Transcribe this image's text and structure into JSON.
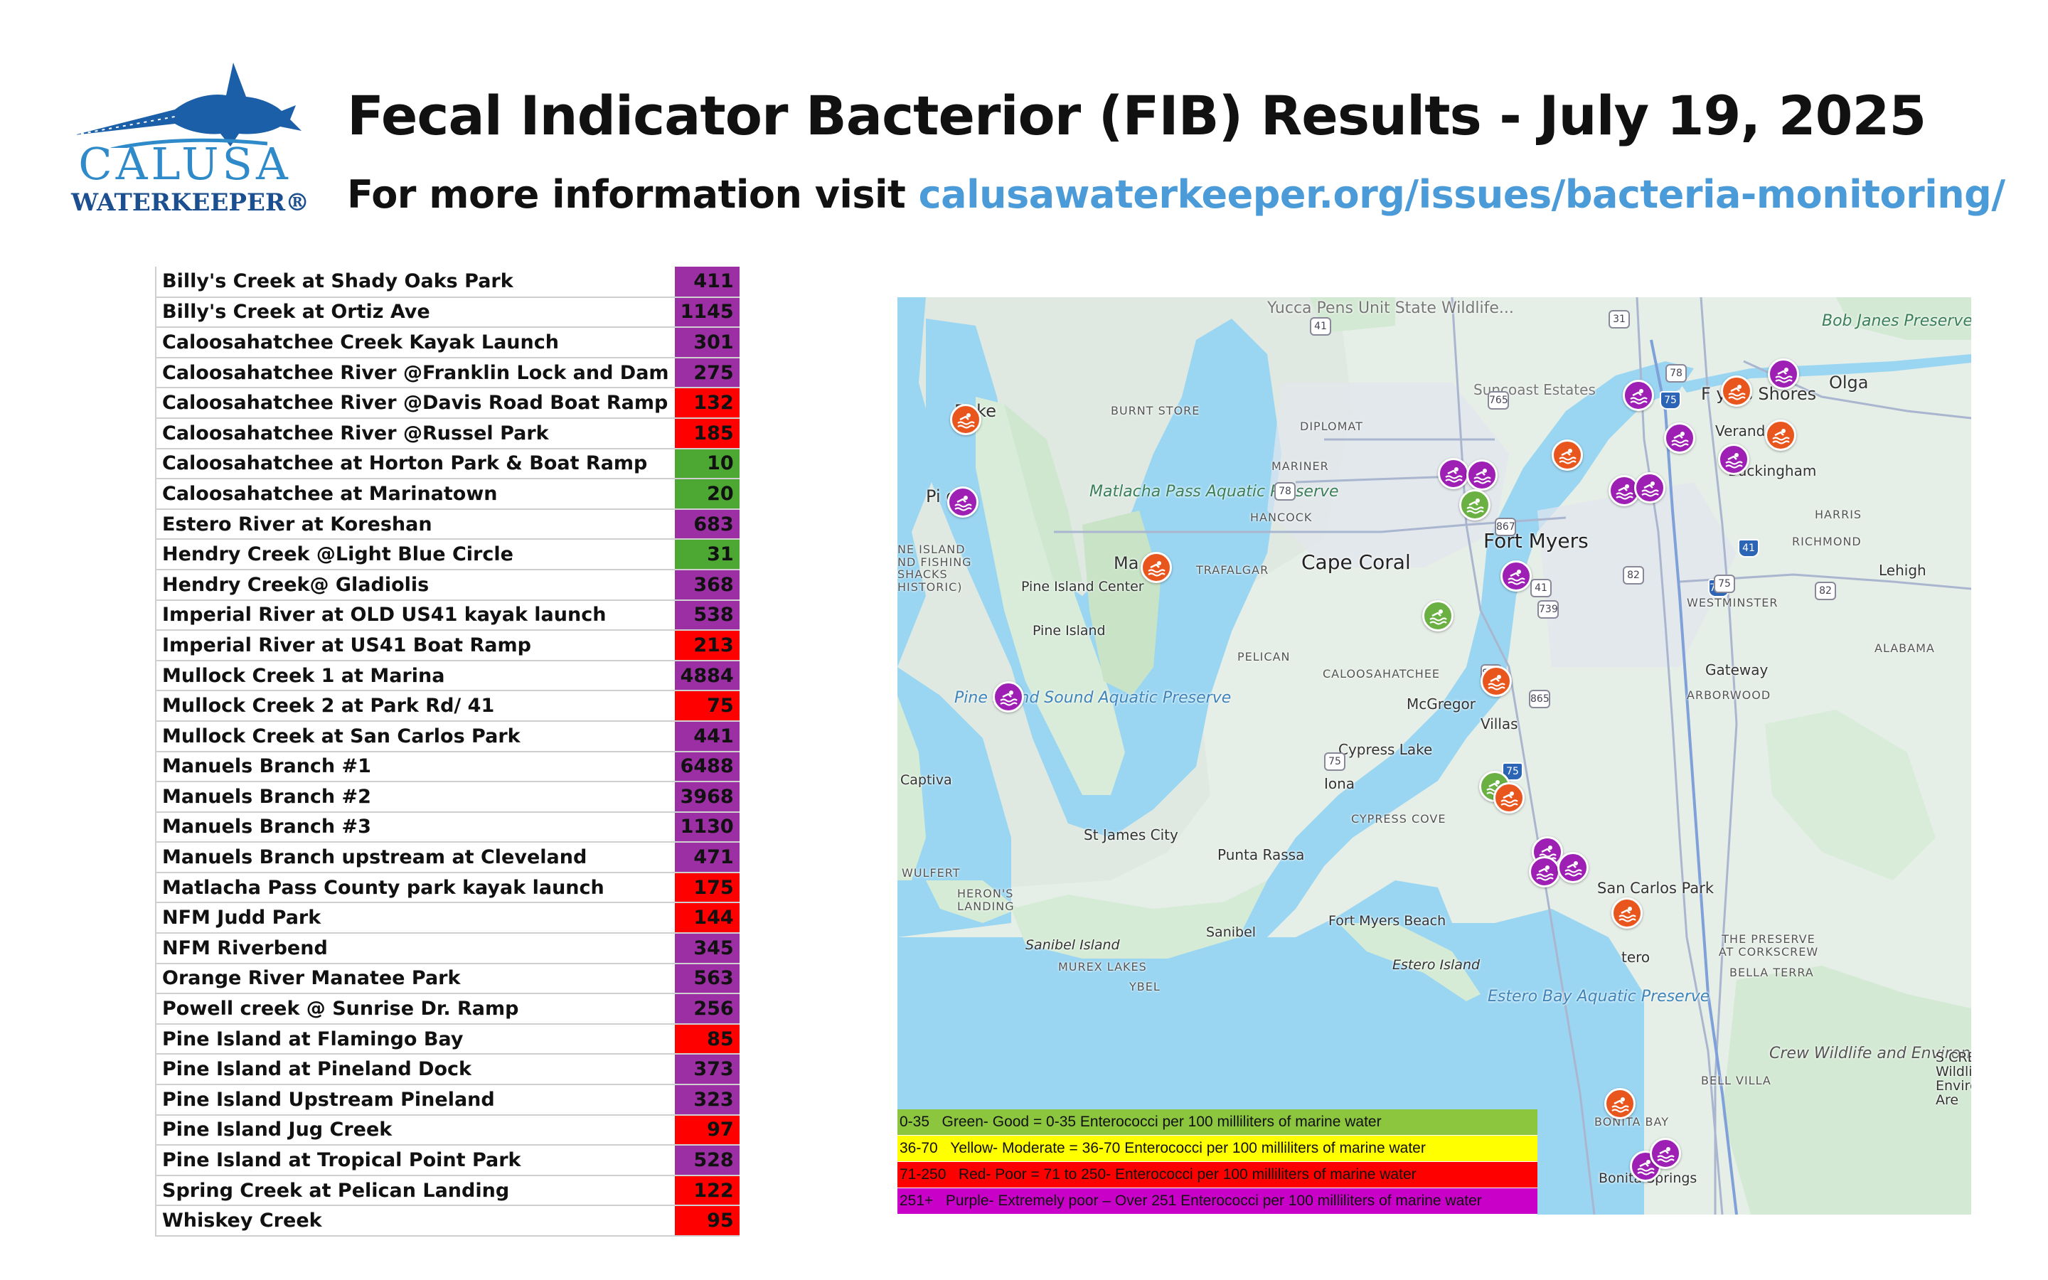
{
  "header": {
    "title": "Fecal Indicator Bacterior (FIB) Results - July 19, 2025",
    "subtitle_prefix": "For more information visit ",
    "subtitle_link": "calusawaterkeeper.org/issues/bacteria-monitoring/"
  },
  "logo": {
    "line1": "CALUSA",
    "line2": "WATERKEEPER®"
  },
  "colors": {
    "green": "#4ca832",
    "yellow": "#ffff00",
    "red": "#ff0000",
    "purple": "#9b2fa3"
  },
  "results": [
    {
      "site": "Billy's Creek at Shady Oaks Park",
      "value": "411",
      "category": "purple"
    },
    {
      "site": "Billy's Creek at Ortiz Ave",
      "value": "1145",
      "category": "purple"
    },
    {
      "site": "Caloosahatchee Creek Kayak Launch",
      "value": "301",
      "category": "purple"
    },
    {
      "site": "Caloosahatchee River @Franklin Lock and Dam",
      "value": "275",
      "category": "purple"
    },
    {
      "site": "Caloosahatchee River @Davis Road Boat Ramp",
      "value": "132",
      "category": "red"
    },
    {
      "site": "Caloosahatchee River @Russel Park",
      "value": "185",
      "category": "red"
    },
    {
      "site": "Caloosahatchee at Horton Park & Boat Ramp",
      "value": "10",
      "category": "green"
    },
    {
      "site": "Caloosahatchee at Marinatown",
      "value": "20",
      "category": "green"
    },
    {
      "site": "Estero River at Koreshan",
      "value": "683",
      "category": "purple"
    },
    {
      "site": "Hendry Creek @Light Blue Circle",
      "value": "31",
      "category": "green"
    },
    {
      "site": "Hendry Creek@ Gladiolis",
      "value": "368",
      "category": "purple"
    },
    {
      "site": "Imperial River at OLD US41 kayak launch",
      "value": "538",
      "category": "purple"
    },
    {
      "site": "Imperial River at US41 Boat Ramp",
      "value": "213",
      "category": "red"
    },
    {
      "site": "Mullock Creek 1 at Marina",
      "value": "4884",
      "category": "purple"
    },
    {
      "site": "Mullock Creek 2 at Park Rd/ 41",
      "value": "75",
      "category": "red"
    },
    {
      "site": "Mullock Creek at San Carlos Park",
      "value": "441",
      "category": "purple"
    },
    {
      "site": "Manuels Branch #1",
      "value": "6488",
      "category": "purple"
    },
    {
      "site": "Manuels Branch #2",
      "value": "3968",
      "category": "purple"
    },
    {
      "site": "Manuels Branch #3",
      "value": "1130",
      "category": "purple"
    },
    {
      "site": "Manuels Branch upstream at Cleveland",
      "value": "471",
      "category": "purple"
    },
    {
      "site": "Matlacha Pass County park kayak launch",
      "value": "175",
      "category": "red"
    },
    {
      "site": "NFM Judd Park",
      "value": "144",
      "category": "red"
    },
    {
      "site": "NFM Riverbend",
      "value": "345",
      "category": "purple"
    },
    {
      "site": "Orange River Manatee Park",
      "value": "563",
      "category": "purple"
    },
    {
      "site": "Powell creek @ Sunrise Dr. Ramp",
      "value": "256",
      "category": "purple"
    },
    {
      "site": "Pine Island at Flamingo Bay",
      "value": "85",
      "category": "red"
    },
    {
      "site": "Pine Island at Pineland Dock",
      "value": "373",
      "category": "purple"
    },
    {
      "site": "Pine Island Upstream Pineland",
      "value": "323",
      "category": "purple"
    },
    {
      "site": "Pine Island Jug Creek",
      "value": "97",
      "category": "red"
    },
    {
      "site": "Pine Island at Tropical Point Park",
      "value": "528",
      "category": "purple"
    },
    {
      "site": "Spring Creek at Pelican Landing",
      "value": "122",
      "category": "red"
    },
    {
      "site": "Whiskey Creek",
      "value": "95",
      "category": "red"
    }
  ],
  "map": {
    "labels": {
      "yucca": "Yucca Pens Unit State Wildlife...",
      "bob_janes": "Bob Janes Preserve",
      "suncoast": "Suncoast Estates",
      "burnt_store": "BURNT STORE",
      "diplomat": "DIPLOMAT",
      "mariner": "MARINER",
      "hancock": "HANCOCK",
      "matlacha_aquatic": "Matlacha Pass Aquatic Preserve",
      "bokeelia": "Boke",
      "pineland": "Pi d",
      "matlacha": "Ma a",
      "fort_myers_shores": "F     yers Shores",
      "olga": "Olga",
      "verandah": "Verandah",
      "buckingham": "Buckingham",
      "harris": "HARRIS",
      "richmond": "RICHMOND",
      "lehigh": "Lehigh",
      "fort_myers": "Fort Myers",
      "cape_coral": "Cape Coral",
      "trafalgar": "TRAFALGAR",
      "pine_island_center": "Pine Island Center",
      "pine_island": "Pine Island",
      "fishing_shacks": "NE ISLAND ND FISHING SHACKS HISTORIC)",
      "westminster": "WESTMINSTER",
      "alabama": "ALABAMA",
      "pelican": "PELICAN",
      "caloosahatchee": "CALOOSAHATCHEE",
      "mcgregor": "McGregor",
      "gateway": "Gateway",
      "arborwood": "ARBORWOOD",
      "villas": "Villas",
      "pine_island_sound": "Pine Island Sound Aquatic Preserve",
      "cypress_lake": "Cypress Lake",
      "captiva": "Captiva",
      "iona": "Iona",
      "cypress_cove": "CYPRESS COVE",
      "st_james": "St James City",
      "punta_rassa": "Punta Rassa",
      "wulfert": "WULFERT",
      "herons_landing": "HERON'S LANDING",
      "san_carlos_park": "San Carlos Park",
      "fort_myers_beach": "Fort Myers Beach",
      "sanibel_island": "Sanibel Island",
      "sanibel": "Sanibel",
      "murex": "MUREX LAKES",
      "ybel": "YBEL",
      "estero_island": "Estero Island",
      "estero": "tero",
      "preserve_corkscrew": "THE PRESERVE AT CORKSCREW",
      "bella_terra": "BELLA TERRA",
      "estero_bay": "Estero Bay Aquatic Preserve",
      "crew": "Crew Wildlife and Environmental Area",
      "bell_villa": "BELL VILLA",
      "bonita_bay": "BONITA BAY",
      "bonita_springs": "Bonita Springs",
      "right_edge": "S CRE Wildlif Environ Are"
    },
    "highways": [
      "41",
      "31",
      "78",
      "75",
      "765",
      "78",
      "867",
      "41",
      "739",
      "82",
      "41",
      "739",
      "75",
      "82",
      "867",
      "865",
      "75",
      "75"
    ],
    "markers": [
      {
        "color": "red"
      },
      {
        "color": "purple"
      },
      {
        "color": "red"
      },
      {
        "color": "red"
      },
      {
        "color": "purple"
      },
      {
        "color": "purple"
      },
      {
        "color": "purple"
      },
      {
        "color": "red"
      },
      {
        "color": "purple"
      },
      {
        "color": "red"
      },
      {
        "color": "purple"
      },
      {
        "color": "purple"
      },
      {
        "color": "purple"
      },
      {
        "color": "purple"
      },
      {
        "color": "green"
      },
      {
        "color": "purple"
      },
      {
        "color": "green"
      },
      {
        "color": "red"
      },
      {
        "color": "purple"
      },
      {
        "color": "green"
      },
      {
        "color": "red"
      },
      {
        "color": "purple"
      },
      {
        "color": "purple"
      },
      {
        "color": "purple"
      },
      {
        "color": "red"
      },
      {
        "color": "red"
      },
      {
        "color": "purple"
      },
      {
        "color": "purple"
      }
    ],
    "legend": [
      {
        "range": "0-35",
        "text": "Green- Good = 0-35 Enterococci per 100 milliliters of marine water",
        "color": "#8cc63f"
      },
      {
        "range": "36-70",
        "text": "Yellow- Moderate = 36-70 Enterococci per 100 milliliters of marine water",
        "color": "#ffff00"
      },
      {
        "range": "71-250",
        "text": "Red- Poor = 71 to 250-  Enterococci per 100 milliliters of marine water",
        "color": "#ff0000"
      },
      {
        "range": "251+",
        "text": "Purple- Extremely poor – Over 251 Enterococci per 100 milliliters of marine water",
        "color": "#c800c8"
      }
    ]
  }
}
